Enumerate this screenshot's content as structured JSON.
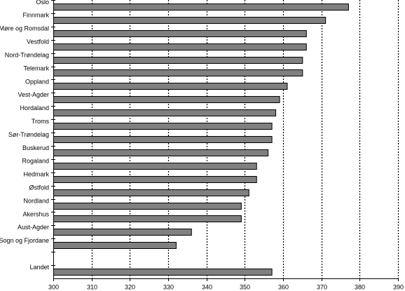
{
  "chart_data": {
    "type": "bar",
    "orientation": "horizontal",
    "categories": [
      "Oslo",
      "Finnmark",
      "Møre og Romsdal",
      "Vestfold",
      "Nord-Trøndelag",
      "Telemark",
      "Oppland",
      "Vest-Agder",
      "Hordaland",
      "Troms",
      "Sør-Trøndelag",
      "Buskerud",
      "Rogaland",
      "Hedmark",
      "Østfold",
      "Nordland",
      "Akershus",
      "Aust-Agder",
      "Sogn og Fjordane",
      "",
      "Landet"
    ],
    "values": [
      377,
      371,
      366,
      366,
      365,
      365,
      361,
      359,
      358,
      357,
      357,
      356,
      353,
      353,
      351,
      349,
      349,
      336,
      332,
      null,
      357
    ],
    "xlim": [
      300,
      390
    ],
    "xticks": [
      300,
      310,
      320,
      330,
      340,
      350,
      360,
      370,
      380,
      390
    ],
    "grid": "vertical dotted lines at each tick",
    "title": "",
    "xlabel": "",
    "ylabel": "",
    "colors": {
      "bar": "#808080",
      "bar_border": "#000000",
      "grid": "#000000"
    }
  }
}
